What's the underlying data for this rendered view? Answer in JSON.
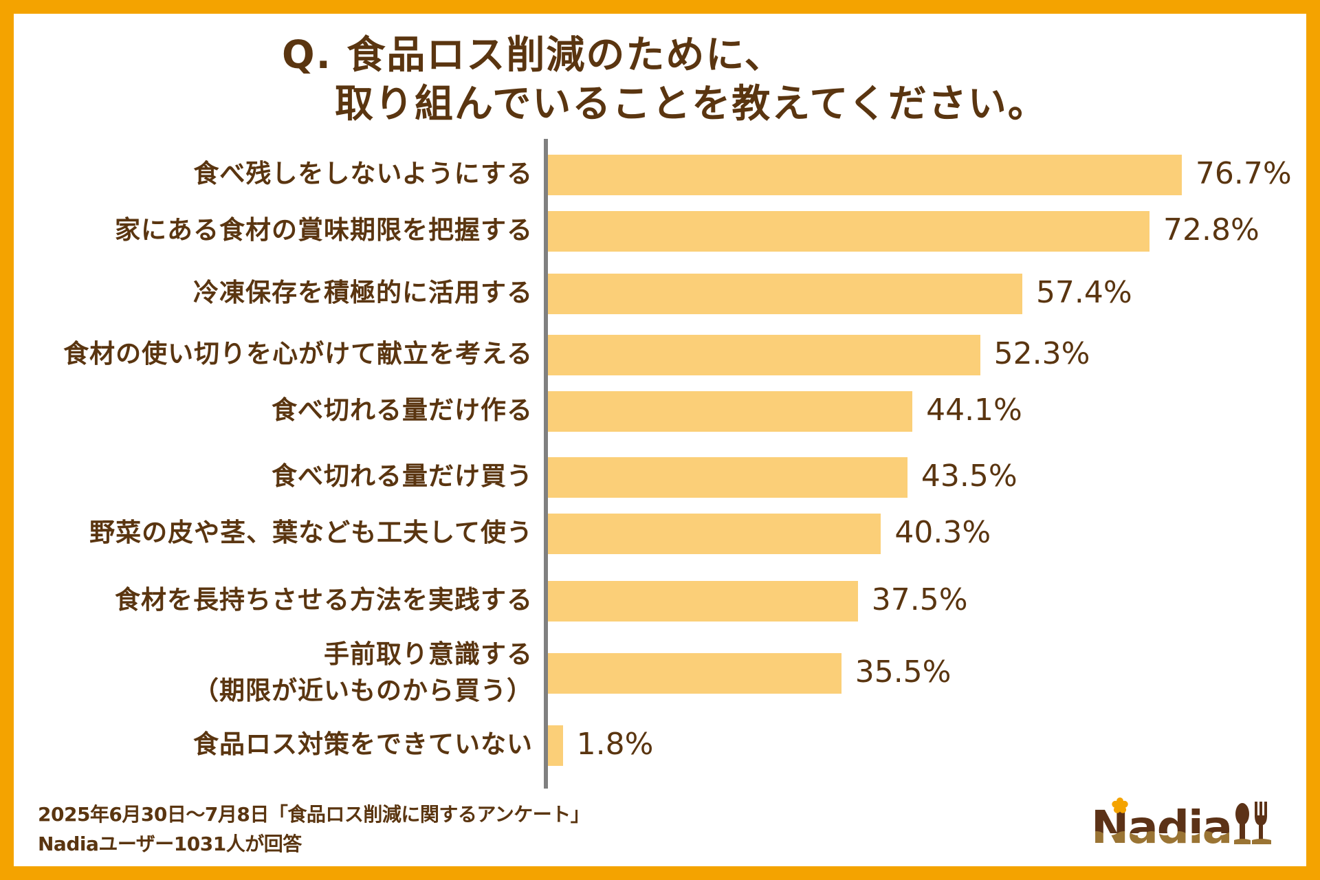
{
  "title": {
    "line1": "Q. 食品ロス削減のために、",
    "line2": "取り組んでいることを教えてください。"
  },
  "colors": {
    "frame": "#F4A300",
    "bar": "#FBCF78",
    "text": "#5a3510",
    "axis": "#808080",
    "logo_brown": "#5c3217",
    "logo_gold": "#9a7434",
    "logo_flower": "#F4A300"
  },
  "chart_data": {
    "type": "bar",
    "orientation": "horizontal",
    "title": "Q. 食品ロス削減のために、取り組んでいることを教えてください。",
    "xlabel": "",
    "ylabel": "",
    "xlim": [
      0,
      100
    ],
    "grid": false,
    "categories": [
      [
        "食べ残しをしないようにする"
      ],
      [
        "家にある食材の賞味期限を把握する"
      ],
      [
        "冷凍保存を積極的に活用する"
      ],
      [
        "食材の使い切りを心がけて献立を考える"
      ],
      [
        "食べ切れる量だけ作る"
      ],
      [
        "食べ切れる量だけ買う"
      ],
      [
        "野菜の皮や茎、葉なども工夫して使う"
      ],
      [
        "食材を長持ちさせる方法を実践する"
      ],
      [
        "手前取り意識する",
        "（期限が近いものから買う）"
      ],
      [
        "食品ロス対策をできていない"
      ]
    ],
    "values": [
      76.7,
      72.8,
      57.4,
      52.3,
      44.1,
      43.5,
      40.3,
      37.5,
      35.5,
      1.8
    ],
    "value_labels": [
      "76.7%",
      "72.8%",
      "57.4%",
      "52.3%",
      "44.1%",
      "43.5%",
      "40.3%",
      "37.5%",
      "35.5%",
      "1.8%"
    ],
    "unit": "%"
  },
  "footer": {
    "line1": "2025年6月30日～7月8日「食品ロス削減に関するアンケート」",
    "line2": "Nadiaユーザー1031人が回答"
  },
  "logo": {
    "text": "Nadia",
    "icon": "spoon-fork-icon"
  }
}
